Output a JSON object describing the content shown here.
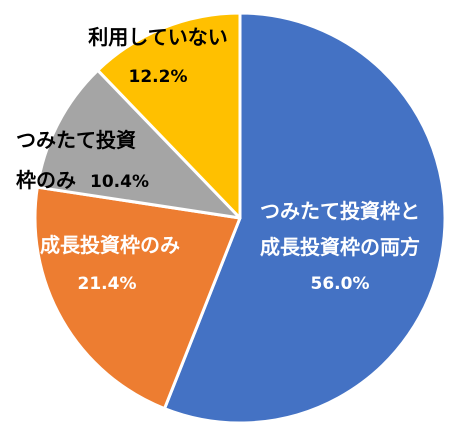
{
  "chart_data": {
    "type": "pie",
    "title": "",
    "start_angle_deg": 0,
    "direction": "clockwise",
    "border_color": "#ffffff",
    "slices": [
      {
        "label_lines": [
          "つみたて投資枠と",
          "成長投資枠の両方"
        ],
        "value": 56.0,
        "value_label": "56.0%",
        "color": "#4472C4",
        "text_color": "#ffffff"
      },
      {
        "label_lines": [
          "成長投資枠のみ"
        ],
        "value": 21.4,
        "value_label": "21.4%",
        "color": "#ED7D31",
        "text_color": "#ffffff"
      },
      {
        "label_lines": [
          "つみたて投資",
          "枠のみ"
        ],
        "value": 10.4,
        "value_label": "10.4%",
        "color": "#A5A5A5",
        "text_color": "#000000"
      },
      {
        "label_lines": [
          "利用していない"
        ],
        "value": 12.2,
        "value_label": "12.2%",
        "color": "#FFC000",
        "text_color": "#000000"
      }
    ]
  }
}
